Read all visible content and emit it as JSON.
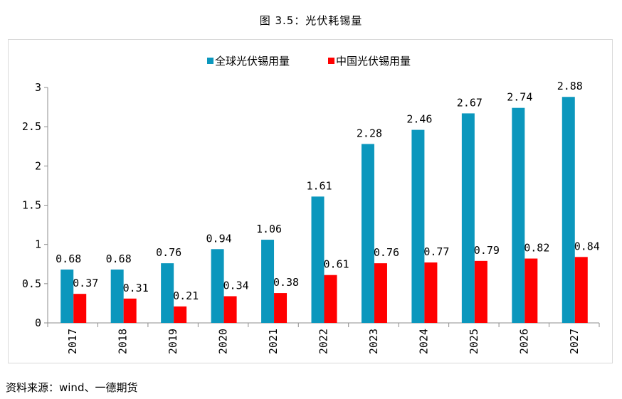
{
  "figure_title": "图 3.5：光伏耗锡量",
  "source_note": "资料来源：wind、一德期货",
  "chart_data": {
    "type": "bar",
    "title": "",
    "xlabel": "",
    "ylabel": "",
    "ylim": [
      0,
      3
    ],
    "yticks": [
      "0",
      "0.5",
      "1",
      "1.5",
      "2",
      "2.5",
      "3"
    ],
    "grid": false,
    "legend_position": "top",
    "categories": [
      "2017",
      "2018",
      "2019",
      "2020",
      "2021",
      "2022",
      "2023",
      "2024",
      "2025",
      "2026",
      "2027"
    ],
    "series": [
      {
        "name": "全球光伏锡用量",
        "color": "#0b97bd",
        "values": [
          0.68,
          0.68,
          0.76,
          0.94,
          1.06,
          1.61,
          2.28,
          2.46,
          2.67,
          2.74,
          2.88
        ],
        "labels": [
          "0.68",
          "0.68",
          "0.76",
          "0.94",
          "1.06",
          "1.61",
          "2.28",
          "2.46",
          "2.67",
          "2.74",
          "2.88"
        ]
      },
      {
        "name": "中国光伏锡用量",
        "color": "#ff0000",
        "values": [
          0.37,
          0.31,
          0.21,
          0.34,
          0.38,
          0.61,
          0.76,
          0.77,
          0.79,
          0.82,
          0.84
        ],
        "labels": [
          "0.37",
          "0.31",
          "0.21",
          "0.34",
          "0.38",
          "0.61",
          "0.76",
          "0.77",
          "0.79",
          "0.82",
          "0.84"
        ]
      }
    ]
  }
}
